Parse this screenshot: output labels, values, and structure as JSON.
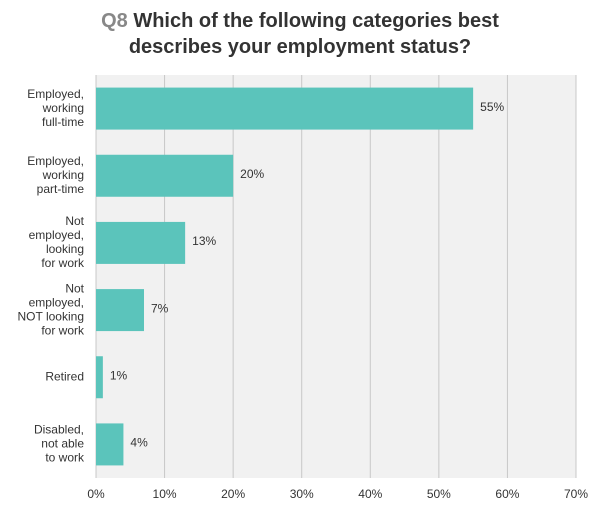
{
  "title": {
    "prefix": "Q8",
    "line1": " Which of the following categories best",
    "line2": "describes your employment status?"
  },
  "colors": {
    "bar": "#5bc4bb",
    "plot_background": "#f1f1f1",
    "gridline": "#c8c8c8",
    "title_prefix": "#888888"
  },
  "chart_data": {
    "type": "bar",
    "orientation": "horizontal",
    "categories": [
      [
        "Employed,",
        "working",
        "full-time"
      ],
      [
        "Employed,",
        "working",
        "part-time"
      ],
      [
        "Not",
        "employed,",
        "looking",
        "for work"
      ],
      [
        "Not",
        "employed,",
        "NOT looking",
        "for work"
      ],
      [
        "Retired"
      ],
      [
        "Disabled,",
        "not able",
        "to work"
      ]
    ],
    "values": [
      55,
      20,
      13,
      7,
      1,
      4
    ],
    "value_labels": [
      "55%",
      "20%",
      "13%",
      "7%",
      "1%",
      "4%"
    ],
    "xlim": [
      0,
      70
    ],
    "x_ticks": [
      0,
      10,
      20,
      30,
      40,
      50,
      60,
      70
    ],
    "x_tick_labels": [
      "0%",
      "10%",
      "20%",
      "30%",
      "40%",
      "50%",
      "60%",
      "70%"
    ],
    "grid": true,
    "legend": "none"
  }
}
